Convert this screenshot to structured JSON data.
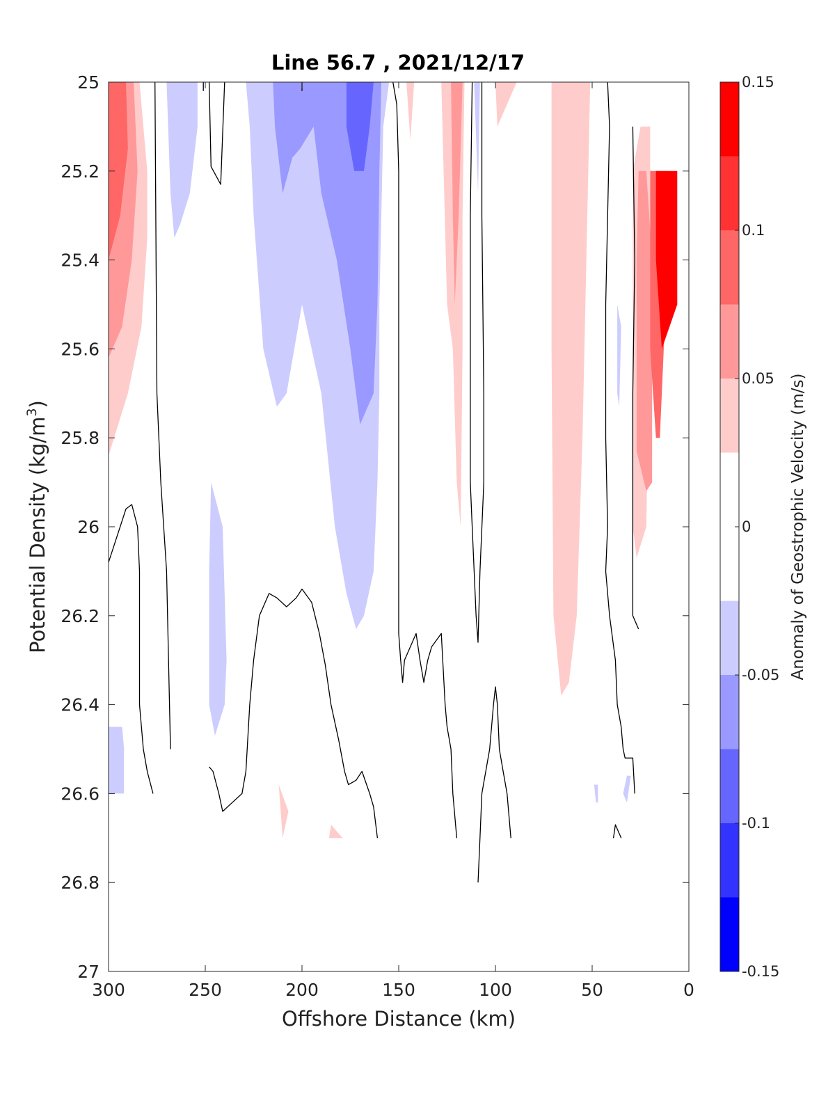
{
  "chart_data": {
    "type": "heatmap",
    "title": "Line 56.7 , 2021/12/17",
    "xlabel": "Offshore Distance (km)",
    "ylabel": "Potential Density (kg/m",
    "ylabel_sup": "3",
    "ylabel_close": ")",
    "xlim": [
      300,
      0
    ],
    "ylim": [
      25,
      27
    ],
    "xticks": [
      "300",
      "250",
      "200",
      "150",
      "100",
      "50",
      "0"
    ],
    "yticks": [
      "25",
      "25.2",
      "25.4",
      "25.6",
      "25.8",
      "26",
      "26.2",
      "26.4",
      "26.6",
      "26.8",
      "27"
    ],
    "colorbar": {
      "label": "Anomaly of Geostrophic Velocity (m/s)",
      "range": [
        -0.15,
        0.15
      ],
      "ticks": [
        "0.15",
        "0.1",
        "0.05",
        "0",
        "-0.05",
        "-0.1",
        "-0.15"
      ],
      "levels": [
        {
          "lo": 0.125,
          "hi": 0.15,
          "color": "#ff0000"
        },
        {
          "lo": 0.1,
          "hi": 0.125,
          "color": "#ff3333"
        },
        {
          "lo": 0.075,
          "hi": 0.1,
          "color": "#ff6666"
        },
        {
          "lo": 0.05,
          "hi": 0.075,
          "color": "#ff9999"
        },
        {
          "lo": 0.025,
          "hi": 0.05,
          "color": "#ffcccc"
        },
        {
          "lo": -0.025,
          "hi": 0.025,
          "color": "#ffffff"
        },
        {
          "lo": -0.05,
          "hi": -0.025,
          "color": "#ccccff"
        },
        {
          "lo": -0.075,
          "hi": -0.05,
          "color": "#9999ff"
        },
        {
          "lo": -0.1,
          "hi": -0.075,
          "color": "#6666ff"
        },
        {
          "lo": -0.125,
          "hi": -0.1,
          "color": "#3333ff"
        },
        {
          "lo": -0.15,
          "hi": -0.125,
          "color": "#0000ff"
        }
      ]
    },
    "regions": [
      {
        "color": "#ffcccc",
        "pts": [
          [
            300,
            25
          ],
          [
            284,
            25
          ],
          [
            280,
            25.2
          ],
          [
            280,
            25.35
          ],
          [
            283,
            25.55
          ],
          [
            290,
            25.7
          ],
          [
            300,
            25.84
          ]
        ]
      },
      {
        "color": "#ff9999",
        "pts": [
          [
            300,
            25
          ],
          [
            287,
            25
          ],
          [
            285,
            25.2
          ],
          [
            288,
            25.4
          ],
          [
            293,
            25.55
          ],
          [
            300,
            25.62
          ]
        ]
      },
      {
        "color": "#ff6666",
        "pts": [
          [
            300,
            25
          ],
          [
            291,
            25
          ],
          [
            290,
            25.15
          ],
          [
            294,
            25.3
          ],
          [
            300,
            25.4
          ]
        ]
      },
      {
        "color": "#ccccff",
        "pts": [
          [
            270,
            25
          ],
          [
            254,
            25
          ],
          [
            254,
            25.1
          ],
          [
            258,
            25.25
          ],
          [
            263,
            25.32
          ],
          [
            266,
            25.35
          ],
          [
            268,
            25.25
          ]
        ]
      },
      {
        "color": "#ccccff",
        "pts": [
          [
            229,
            25
          ],
          [
            155,
            25
          ],
          [
            158,
            25.1
          ],
          [
            159,
            25.3
          ],
          [
            160,
            25.5
          ],
          [
            160,
            25.7
          ],
          [
            161,
            25.9
          ],
          [
            163,
            26.1
          ],
          [
            168,
            26.2
          ],
          [
            172,
            26.23
          ],
          [
            177,
            26.15
          ],
          [
            183,
            26
          ],
          [
            190,
            25.7
          ],
          [
            200,
            25.5
          ],
          [
            208,
            25.7
          ],
          [
            213,
            25.73
          ],
          [
            220,
            25.6
          ],
          [
            225,
            25.3
          ],
          [
            227,
            25.1
          ]
        ]
      },
      {
        "color": "#9999ff",
        "pts": [
          [
            215,
            25
          ],
          [
            193,
            25
          ],
          [
            194,
            25.1
          ],
          [
            201,
            25.15
          ],
          [
            205,
            25.17
          ],
          [
            210,
            25.25
          ],
          [
            214,
            25.1
          ]
        ]
      },
      {
        "color": "#9999ff",
        "pts": [
          [
            195,
            25
          ],
          [
            159,
            25
          ],
          [
            160,
            25.2
          ],
          [
            161,
            25.5
          ],
          [
            163,
            25.7
          ],
          [
            170,
            25.77
          ],
          [
            175,
            25.6
          ],
          [
            182,
            25.4
          ],
          [
            190,
            25.25
          ],
          [
            194,
            25.1
          ]
        ]
      },
      {
        "color": "#6666ff",
        "pts": [
          [
            177,
            25
          ],
          [
            163,
            25
          ],
          [
            165,
            25.1
          ],
          [
            168,
            25.2
          ],
          [
            173,
            25.2
          ],
          [
            177,
            25.1
          ]
        ]
      },
      {
        "color": "#ccccff",
        "pts": [
          [
            247,
            25.9
          ],
          [
            241,
            26.0
          ],
          [
            239,
            26.3
          ],
          [
            240,
            26.4
          ],
          [
            245,
            26.47
          ],
          [
            248,
            26.4
          ],
          [
            248,
            26.1
          ]
        ]
      },
      {
        "color": "#ccccff",
        "pts": [
          [
            300,
            26.45
          ],
          [
            293,
            26.45
          ],
          [
            292,
            26.5
          ],
          [
            292,
            26.6
          ],
          [
            300,
            26.6
          ]
        ]
      },
      {
        "color": "#ffcccc",
        "pts": [
          [
            128,
            25
          ],
          [
            116,
            25
          ],
          [
            117,
            25.3
          ],
          [
            117,
            25.6
          ],
          [
            118,
            26.0
          ],
          [
            120,
            25.9
          ],
          [
            122,
            25.6
          ],
          [
            125,
            25.5
          ]
        ]
      },
      {
        "color": "#ff9999",
        "pts": [
          [
            123,
            25
          ],
          [
            117,
            25
          ],
          [
            119,
            25.3
          ],
          [
            121,
            25.5
          ],
          [
            122,
            25.3
          ]
        ]
      },
      {
        "color": "#ffcccc",
        "pts": [
          [
            146,
            25
          ],
          [
            142,
            25
          ],
          [
            144,
            25.13
          ]
        ]
      },
      {
        "color": "#ffcccc",
        "pts": [
          [
            100,
            25
          ],
          [
            89,
            25
          ],
          [
            99,
            25.1
          ]
        ]
      },
      {
        "color": "#ccccff",
        "pts": [
          [
            111,
            25
          ],
          [
            108,
            25
          ],
          [
            109,
            25.25
          ]
        ]
      },
      {
        "color": "#ffcccc",
        "pts": [
          [
            71,
            25
          ],
          [
            51,
            25
          ],
          [
            55,
            25.8
          ],
          [
            58,
            26.2
          ],
          [
            62,
            26.35
          ],
          [
            66,
            26.38
          ],
          [
            70,
            26.2
          ],
          [
            71,
            25.6
          ]
        ]
      },
      {
        "color": "#ffcccc",
        "pts": [
          [
            25,
            25.1
          ],
          [
            20,
            25.1
          ],
          [
            20,
            25.5
          ],
          [
            22,
            26
          ],
          [
            27,
            26.07
          ],
          [
            29,
            26
          ],
          [
            29,
            25.2
          ]
        ]
      },
      {
        "color": "#ff9999",
        "pts": [
          [
            26,
            25.2
          ],
          [
            22,
            25.2
          ],
          [
            19,
            25.4
          ],
          [
            19,
            25.9
          ],
          [
            22,
            25.92
          ],
          [
            27,
            25.83
          ],
          [
            27,
            25.4
          ]
        ]
      },
      {
        "color": "#ff6666",
        "pts": [
          [
            20,
            25.2
          ],
          [
            11,
            25.2
          ],
          [
            13,
            25.6
          ],
          [
            15,
            25.8
          ],
          [
            17,
            25.8
          ],
          [
            20,
            25.6
          ]
        ]
      },
      {
        "color": "#ff0000",
        "pts": [
          [
            17,
            25.2
          ],
          [
            6,
            25.2
          ],
          [
            6,
            25.5
          ],
          [
            10,
            25.55
          ],
          [
            14,
            25.6
          ],
          [
            17,
            25.4
          ]
        ]
      },
      {
        "color": "#ccccff",
        "pts": [
          [
            37,
            25.5
          ],
          [
            35,
            25.55
          ],
          [
            36,
            25.73
          ],
          [
            37,
            25.7
          ]
        ]
      },
      {
        "color": "#ccccff",
        "pts": [
          [
            49,
            26.58
          ],
          [
            47,
            26.58
          ],
          [
            47,
            26.62
          ],
          [
            48,
            26.62
          ]
        ]
      },
      {
        "color": "#ccccff",
        "pts": [
          [
            32,
            26.56
          ],
          [
            30,
            26.56
          ],
          [
            32,
            26.62
          ],
          [
            34,
            26.6
          ]
        ]
      },
      {
        "color": "#ffcccc",
        "pts": [
          [
            212,
            26.58
          ],
          [
            210,
            26.7
          ],
          [
            207,
            26.64
          ]
        ]
      },
      {
        "color": "#ffcccc",
        "pts": [
          [
            185,
            26.67
          ],
          [
            179,
            26.7
          ],
          [
            186,
            26.7
          ]
        ]
      }
    ],
    "contours": [
      [
        [
          300,
          26.08
        ],
        [
          291,
          25.96
        ],
        [
          288,
          25.95
        ],
        [
          285,
          26.0
        ],
        [
          284,
          26.1
        ],
        [
          284,
          26.4
        ],
        [
          282,
          26.5
        ],
        [
          280,
          26.55
        ],
        [
          277,
          26.6
        ]
      ],
      [
        [
          276,
          25
        ],
        [
          275,
          25.7
        ],
        [
          273,
          25.9
        ],
        [
          270,
          26.1
        ],
        [
          269,
          26.3
        ],
        [
          268,
          26.5
        ]
      ],
      [
        [
          251,
          25
        ],
        [
          251,
          25.02
        ]
      ],
      [
        [
          248,
          25
        ],
        [
          247,
          25.19
        ],
        [
          242,
          25.23
        ],
        [
          240,
          25
        ]
      ],
      [
        [
          248,
          26.54
        ],
        [
          246,
          26.55
        ],
        [
          243,
          26.6
        ],
        [
          241,
          26.64
        ],
        [
          236,
          26.62
        ],
        [
          231,
          26.6
        ],
        [
          229,
          26.55
        ],
        [
          227,
          26.4
        ],
        [
          225,
          26.3
        ],
        [
          222,
          26.2
        ],
        [
          217,
          26.15
        ],
        [
          213,
          26.16
        ],
        [
          208,
          26.18
        ],
        [
          203,
          26.16
        ],
        [
          200,
          26.14
        ],
        [
          195,
          26.17
        ],
        [
          191,
          26.24
        ],
        [
          188,
          26.31
        ],
        [
          185,
          26.4
        ],
        [
          181,
          26.48
        ],
        [
          178,
          26.55
        ],
        [
          176,
          26.58
        ],
        [
          172,
          26.57
        ],
        [
          169,
          26.55
        ],
        [
          165,
          26.6
        ],
        [
          163,
          26.63
        ],
        [
          161,
          26.7
        ]
      ],
      [
        [
          200,
          25
        ],
        [
          200,
          25.02
        ]
      ],
      [
        [
          153,
          25
        ],
        [
          151,
          25.05
        ],
        [
          150,
          25.2
        ],
        [
          150,
          26.1
        ],
        [
          150,
          26.24
        ],
        [
          149,
          26.3
        ],
        [
          148,
          26.35
        ],
        [
          147,
          26.3
        ],
        [
          144,
          26.27
        ],
        [
          141,
          26.24
        ],
        [
          139,
          26.3
        ],
        [
          137,
          26.35
        ],
        [
          135,
          26.3
        ],
        [
          133,
          26.27
        ],
        [
          128,
          26.24
        ],
        [
          126,
          26.4
        ],
        [
          125,
          26.45
        ],
        [
          123,
          26.5
        ],
        [
          122,
          26.6
        ],
        [
          120,
          26.7
        ]
      ],
      [
        [
          107,
          25
        ],
        [
          107,
          25.3
        ],
        [
          106,
          25.7
        ],
        [
          106,
          25.9
        ],
        [
          108,
          26.1
        ],
        [
          109,
          26.26
        ],
        [
          110,
          26.2
        ],
        [
          112,
          26.0
        ],
        [
          113,
          25.9
        ],
        [
          113,
          25.3
        ],
        [
          112,
          25
        ]
      ],
      [
        [
          109,
          26.8
        ],
        [
          108,
          26.7
        ],
        [
          107,
          26.6
        ],
        [
          105,
          26.55
        ],
        [
          103,
          26.5
        ],
        [
          101,
          26.4
        ],
        [
          100,
          26.36
        ],
        [
          99,
          26.4
        ],
        [
          98,
          26.5
        ],
        [
          96,
          26.55
        ],
        [
          94,
          26.6
        ],
        [
          92,
          26.7
        ]
      ],
      [
        [
          42,
          25
        ],
        [
          41,
          25.1
        ],
        [
          43,
          25.5
        ],
        [
          43,
          25.8
        ],
        [
          42,
          26.0
        ],
        [
          43,
          26.1
        ],
        [
          41,
          26.2
        ],
        [
          38,
          26.3
        ],
        [
          37,
          26.4
        ],
        [
          35,
          26.45
        ],
        [
          34,
          26.5
        ],
        [
          33,
          26.52
        ],
        [
          29,
          26.52
        ],
        [
          28,
          26.6
        ]
      ],
      [
        [
          29,
          25.1
        ],
        [
          28,
          25.4
        ],
        [
          29,
          25.7
        ],
        [
          29,
          25.9
        ],
        [
          29,
          26.0
        ],
        [
          29,
          26.2
        ],
        [
          26,
          26.23
        ]
      ],
      [
        [
          39,
          26.7
        ],
        [
          38,
          26.67
        ],
        [
          35,
          26.7
        ]
      ]
    ]
  }
}
